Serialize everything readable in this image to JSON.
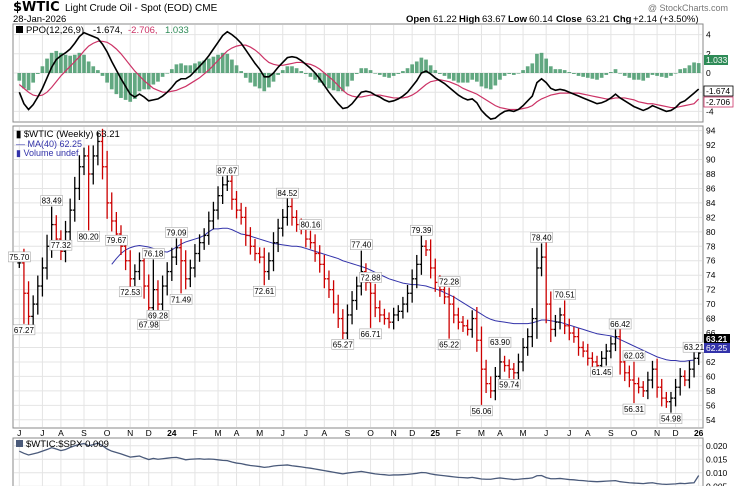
{
  "header": {
    "symbol": "$WTIC",
    "description": "Light Crude Oil - Spot (EOD) CME",
    "date": "28-Jan-2026",
    "watermark": "@ StockCharts.com",
    "quote": {
      "open_label": "Open",
      "open": "61.22",
      "high_label": "High",
      "high": "63.67",
      "low_label": "Low",
      "low": "60.14",
      "close_label": "Close",
      "close": "63.21",
      "chg_label": "Chg",
      "chg": "+2.14 (+3.50%)"
    }
  },
  "ppo_panel": {
    "legend_name": "PPO(12,26,9)",
    "legend_v1": "-1.674,",
    "legend_v2": "-2.706,",
    "legend_v3": "1.033",
    "tag_hist": "1.033",
    "tag_ppo": "-1.674",
    "tag_signal": "-2.706"
  },
  "price_panel": {
    "legend_title": "$WTIC (Weekly) 63.21",
    "legend_ma": "MA(40) 62.25",
    "legend_volume": "Volume undef",
    "tag_close": "63.21",
    "tag_ma": "62.25"
  },
  "ratio_panel": {
    "legend": "$WTIC:$SPX 0.009"
  },
  "colors": {
    "up": "#000000",
    "down": "#cc0000",
    "ma": "#3333aa",
    "ppo_line": "#000000",
    "signal_line": "#cc3366",
    "histogram": "#2e8b57",
    "ratio_line": "#4a5a7a",
    "grid": "#e4e4e4",
    "tag_price_bg": "#000000",
    "tag_ma_bg": "#3333aa",
    "tag_hist_bg": "#2e8b57"
  },
  "chart_data": {
    "type": "ohlc-bar",
    "timeframe": "weekly",
    "x_axis_labels": [
      "J",
      "J",
      "A",
      "S",
      "O",
      "N",
      "D",
      "24",
      "F",
      "M",
      "A",
      "M",
      "J",
      "J",
      "A",
      "S",
      "O",
      "N",
      "D",
      "25",
      "F",
      "M",
      "A",
      "M",
      "J",
      "J",
      "A",
      "S",
      "O",
      "N",
      "D",
      "26"
    ],
    "y_axis": {
      "ticks": [
        54,
        56,
        58,
        60,
        62,
        64,
        66,
        68,
        70,
        72,
        74,
        76,
        78,
        80,
        82,
        84,
        86,
        88,
        90,
        92,
        94
      ],
      "ylim": [
        53,
        94.5
      ]
    },
    "ppo_axis": {
      "ticks": [
        4,
        2,
        0,
        -2,
        -4
      ],
      "ylim": [
        -5,
        5
      ]
    },
    "ratio_axis": {
      "ticks": [
        0.02,
        0.015,
        0.01,
        0.005
      ],
      "ylim": [
        0.004,
        0.0225
      ]
    },
    "annotations": [
      {
        "week": 0,
        "value": 75.7,
        "text": "75.70"
      },
      {
        "week": 1,
        "value": 67.27,
        "text": "67.27"
      },
      {
        "week": 7,
        "value": 83.49,
        "text": "83.49"
      },
      {
        "week": 9,
        "value": 77.32,
        "text": "77.32"
      },
      {
        "week": 15,
        "value": 80.2,
        "text": "80.20"
      },
      {
        "week": 21,
        "value": 79.67,
        "text": "79.67"
      },
      {
        "week": 24,
        "value": 72.53,
        "text": "72.53"
      },
      {
        "week": 28,
        "value": 67.98,
        "text": "67.98"
      },
      {
        "week": 29,
        "value": 76.18,
        "text": "76.18"
      },
      {
        "week": 30,
        "value": 69.28,
        "text": "69.28"
      },
      {
        "week": 34,
        "value": 79.09,
        "text": "79.09"
      },
      {
        "week": 35,
        "value": 71.49,
        "text": "71.49"
      },
      {
        "week": 45,
        "value": 87.67,
        "text": "87.67"
      },
      {
        "week": 53,
        "value": 72.61,
        "text": "72.61"
      },
      {
        "week": 58,
        "value": 84.52,
        "text": "84.52"
      },
      {
        "week": 63,
        "value": 80.16,
        "text": "80.16"
      },
      {
        "week": 70,
        "value": 65.27,
        "text": "65.27"
      },
      {
        "week": 74,
        "value": 77.4,
        "text": "77.40"
      },
      {
        "week": 76,
        "value": 72.88,
        "text": "72.88"
      },
      {
        "week": 76,
        "value": 66.71,
        "text": "66.71"
      },
      {
        "week": 87,
        "value": 79.39,
        "text": "79.39"
      },
      {
        "week": 93,
        "value": 72.28,
        "text": "72.28"
      },
      {
        "week": 93,
        "value": 65.22,
        "text": "65.22"
      },
      {
        "week": 100,
        "value": 56.06,
        "text": "56.06"
      },
      {
        "week": 104,
        "value": 63.9,
        "text": "63.90"
      },
      {
        "week": 106,
        "value": 59.74,
        "text": "59.74"
      },
      {
        "week": 113,
        "value": 78.4,
        "text": "78.40"
      },
      {
        "week": 118,
        "value": 70.51,
        "text": "70.51"
      },
      {
        "week": 126,
        "value": 61.45,
        "text": "61.45"
      },
      {
        "week": 130,
        "value": 66.42,
        "text": "66.42"
      },
      {
        "week": 133,
        "value": 62.03,
        "text": "62.03"
      },
      {
        "week": 133,
        "value": 56.31,
        "text": "56.31"
      },
      {
        "week": 141,
        "value": 54.98,
        "text": "54.98"
      },
      {
        "week": 146,
        "value": 63.21,
        "text": "63.21"
      }
    ],
    "close_series": [
      75.7,
      71.5,
      68.3,
      70.0,
      72.5,
      75.0,
      78.0,
      81.0,
      79.0,
      77.3,
      80.0,
      83.0,
      86.0,
      89.0,
      90.5,
      88.0,
      90.5,
      92.5,
      89.0,
      84.0,
      81.5,
      79.7,
      78.0,
      76.0,
      73.5,
      74.5,
      76.0,
      72.5,
      69.5,
      72.0,
      70.0,
      72.5,
      74.5,
      76.5,
      77.8,
      76.0,
      73.5,
      75.0,
      77.0,
      78.5,
      79.5,
      81.5,
      83.0,
      85.0,
      86.5,
      87.0,
      84.5,
      83.0,
      82.0,
      79.5,
      78.0,
      77.0,
      76.5,
      74.5,
      76.0,
      78.5,
      80.5,
      82.0,
      83.5,
      82.0,
      81.0,
      80.5,
      79.0,
      78.5,
      77.0,
      75.5,
      73.5,
      72.0,
      70.0,
      68.0,
      66.0,
      68.5,
      70.5,
      72.5,
      74.5,
      73.0,
      71.5,
      69.5,
      68.5,
      68.0,
      67.5,
      68.5,
      69.0,
      70.0,
      71.5,
      73.5,
      75.5,
      78.0,
      77.5,
      75.0,
      73.0,
      72.0,
      71.0,
      70.0,
      68.5,
      67.5,
      67.0,
      66.5,
      68.0,
      65.0,
      61.0,
      59.0,
      58.0,
      60.0,
      62.0,
      61.5,
      61.0,
      60.5,
      62.0,
      64.0,
      65.5,
      68.0,
      75.0,
      76.5,
      70.0,
      66.5,
      67.5,
      68.5,
      67.0,
      66.0,
      65.5,
      64.0,
      63.5,
      62.5,
      62.0,
      61.5,
      62.5,
      63.5,
      64.5,
      65.5,
      62.0,
      60.5,
      59.5,
      59.0,
      58.5,
      58.0,
      59.5,
      61.0,
      58.5,
      57.0,
      56.5,
      57.0,
      58.5,
      60.0,
      59.5,
      61.0,
      62.5,
      63.21
    ],
    "ma40_series": [
      null,
      null,
      null,
      null,
      null,
      null,
      null,
      null,
      null,
      null,
      null,
      null,
      null,
      null,
      null,
      null,
      null,
      null,
      null,
      null,
      75.5,
      76.3,
      77.0,
      77.5,
      77.8,
      78.0,
      78.1,
      78.0,
      77.9,
      77.7,
      77.5,
      77.3,
      77.2,
      77.5,
      77.9,
      78.3,
      78.6,
      78.8,
      79.0,
      79.2,
      79.5,
      80.0,
      80.4,
      80.4,
      80.5,
      80.5,
      80.3,
      80.0,
      79.7,
      79.6,
      79.4,
      79.2,
      79.0,
      78.8,
      78.6,
      78.4,
      78.3,
      78.2,
      78.1,
      78.0,
      78.0,
      77.9,
      77.7,
      77.5,
      77.3,
      77.1,
      76.9,
      76.7,
      76.5,
      76.3,
      76.0,
      75.8,
      75.6,
      75.4,
      75.2,
      75.0,
      74.7,
      74.4,
      74.1,
      73.8,
      73.5,
      73.3,
      73.1,
      72.9,
      72.8,
      72.7,
      72.7,
      72.6,
      72.5,
      72.3,
      72.1,
      71.9,
      71.6,
      71.3,
      71.0,
      70.6,
      70.2,
      69.8,
      69.4,
      69.0,
      68.6,
      68.2,
      67.9,
      67.7,
      67.6,
      67.5,
      67.4,
      67.3,
      67.3,
      67.3,
      67.3,
      67.4,
      67.6,
      67.8,
      67.8,
      67.7,
      67.6,
      67.5,
      67.3,
      67.1,
      66.9,
      66.7,
      66.5,
      66.3,
      66.1,
      65.9,
      65.8,
      65.7,
      65.6,
      65.4,
      65.1,
      64.8,
      64.5,
      64.2,
      63.9,
      63.6,
      63.3,
      63.0,
      62.7,
      62.5,
      62.3,
      62.2,
      62.2,
      62.1,
      62.1,
      62.2,
      62.25
    ],
    "ppo_series": [
      -2.0,
      -3.2,
      -3.8,
      -3.3,
      -2.5,
      -1.6,
      -0.5,
      0.6,
      1.4,
      1.8,
      2.1,
      2.5,
      3.1,
      3.8,
      4.2,
      4.0,
      3.8,
      3.6,
      3.0,
      2.2,
      1.2,
      0.3,
      -0.6,
      -1.4,
      -2.2,
      -2.5,
      -2.2,
      -2.5,
      -2.9,
      -2.8,
      -2.7,
      -2.4,
      -2.0,
      -1.5,
      -0.9,
      -0.6,
      -0.6,
      -0.3,
      0.2,
      0.7,
      1.2,
      1.8,
      2.5,
      3.2,
      3.9,
      4.3,
      4.0,
      3.6,
      3.1,
      2.4,
      1.7,
      1.0,
      0.4,
      -0.4,
      -0.4,
      0.0,
      0.6,
      1.1,
      1.6,
      1.7,
      1.6,
      1.3,
      0.9,
      0.5,
      0.0,
      -0.6,
      -1.3,
      -2.0,
      -2.6,
      -3.2,
      -3.7,
      -3.6,
      -3.2,
      -2.6,
      -2.0,
      -1.9,
      -2.0,
      -2.3,
      -2.5,
      -2.8,
      -3.0,
      -2.9,
      -2.7,
      -2.4,
      -2.0,
      -1.4,
      -0.8,
      0.0,
      0.2,
      -0.1,
      -0.5,
      -0.8,
      -1.1,
      -1.5,
      -1.9,
      -2.3,
      -2.6,
      -2.8,
      -2.7,
      -3.1,
      -3.9,
      -4.4,
      -4.8,
      -4.7,
      -4.3,
      -4.0,
      -3.9,
      -4.0,
      -3.8,
      -3.4,
      -2.9,
      -2.4,
      -1.0,
      -0.6,
      -1.0,
      -1.6,
      -1.8,
      -1.7,
      -1.8,
      -2.0,
      -2.2,
      -2.4,
      -2.6,
      -2.8,
      -3.0,
      -3.2,
      -3.1,
      -2.9,
      -2.6,
      -2.2,
      -2.6,
      -2.9,
      -3.2,
      -3.5,
      -3.7,
      -3.9,
      -3.7,
      -3.4,
      -3.6,
      -3.8,
      -4.0,
      -3.9,
      -3.6,
      -3.1,
      -2.9,
      -2.5,
      -2.1,
      -1.674
    ],
    "signal_series": [
      -1.2,
      -1.6,
      -2.0,
      -2.3,
      -2.4,
      -2.3,
      -2.0,
      -1.5,
      -0.9,
      -0.3,
      0.2,
      0.7,
      1.2,
      1.7,
      2.3,
      2.8,
      3.1,
      3.3,
      3.3,
      3.2,
      2.9,
      2.5,
      2.0,
      1.4,
      0.8,
      0.2,
      -0.3,
      -0.8,
      -1.2,
      -1.6,
      -1.8,
      -2.0,
      -2.0,
      -1.9,
      -1.8,
      -1.6,
      -1.4,
      -1.1,
      -0.8,
      -0.5,
      -0.1,
      0.3,
      0.8,
      1.3,
      1.8,
      2.3,
      2.6,
      2.8,
      2.9,
      2.9,
      2.7,
      2.4,
      2.0,
      1.5,
      1.1,
      0.9,
      0.8,
      0.8,
      0.9,
      1.0,
      1.1,
      1.1,
      1.0,
      0.9,
      0.7,
      0.4,
      0.0,
      -0.4,
      -0.8,
      -1.3,
      -1.8,
      -2.2,
      -2.4,
      -2.5,
      -2.5,
      -2.4,
      -2.3,
      -2.3,
      -2.3,
      -2.4,
      -2.5,
      -2.6,
      -2.6,
      -2.6,
      -2.5,
      -2.3,
      -2.0,
      -1.6,
      -1.2,
      -0.9,
      -0.8,
      -0.7,
      -0.8,
      -0.9,
      -1.1,
      -1.3,
      -1.6,
      -1.8,
      -2.0,
      -2.2,
      -2.5,
      -2.8,
      -3.1,
      -3.4,
      -3.6,
      -3.7,
      -3.8,
      -3.8,
      -3.8,
      -3.7,
      -3.6,
      -3.4,
      -3.0,
      -2.7,
      -2.5,
      -2.3,
      -2.2,
      -2.1,
      -2.1,
      -2.1,
      -2.1,
      -2.1,
      -2.2,
      -2.3,
      -2.4,
      -2.5,
      -2.6,
      -2.7,
      -2.7,
      -2.6,
      -2.6,
      -2.6,
      -2.7,
      -2.8,
      -3.0,
      -3.1,
      -3.2,
      -3.2,
      -3.3,
      -3.4,
      -3.5,
      -3.6,
      -3.6,
      -3.5,
      -3.4,
      -3.3,
      -3.2,
      -2.706
    ],
    "ratio_series": [
      0.018,
      0.0172,
      0.0166,
      0.017,
      0.0174,
      0.018,
      0.0186,
      0.0193,
      0.0188,
      0.0182,
      0.0186,
      0.0194,
      0.02,
      0.0205,
      0.0208,
      0.02,
      0.0204,
      0.021,
      0.02,
      0.0188,
      0.018,
      0.0175,
      0.017,
      0.0164,
      0.0158,
      0.016,
      0.0162,
      0.0155,
      0.0149,
      0.0153,
      0.015,
      0.0152,
      0.0154,
      0.0156,
      0.0157,
      0.0153,
      0.0148,
      0.015,
      0.0151,
      0.0152,
      0.015,
      0.0151,
      0.015,
      0.0148,
      0.0146,
      0.0145,
      0.014,
      0.0136,
      0.0134,
      0.013,
      0.0127,
      0.0125,
      0.0123,
      0.012,
      0.0122,
      0.0125,
      0.0127,
      0.0128,
      0.0129,
      0.0126,
      0.0124,
      0.0122,
      0.0119,
      0.0117,
      0.0114,
      0.0111,
      0.0108,
      0.0105,
      0.0102,
      0.0099,
      0.0096,
      0.0099,
      0.0101,
      0.0103,
      0.0105,
      0.0102,
      0.0099,
      0.0096,
      0.0094,
      0.0093,
      0.0091,
      0.0092,
      0.0092,
      0.0093,
      0.0094,
      0.0096,
      0.0098,
      0.0101,
      0.01,
      0.0096,
      0.0093,
      0.0091,
      0.0089,
      0.0087,
      0.0085,
      0.0083,
      0.0082,
      0.0081,
      0.0083,
      0.008,
      0.0077,
      0.0076,
      0.0076,
      0.0079,
      0.0081,
      0.0079,
      0.0077,
      0.0075,
      0.0076,
      0.0078,
      0.0079,
      0.0081,
      0.0089,
      0.009,
      0.0082,
      0.0078,
      0.0078,
      0.0079,
      0.0077,
      0.0075,
      0.0074,
      0.0072,
      0.0071,
      0.0069,
      0.0068,
      0.0067,
      0.0068,
      0.0069,
      0.007,
      0.0071,
      0.0067,
      0.0065,
      0.0063,
      0.0062,
      0.0061,
      0.006,
      0.0062,
      0.0063,
      0.006,
      0.0058,
      0.0057,
      0.0058,
      0.0059,
      0.0061,
      0.006,
      0.0062,
      0.0063,
      0.009
    ]
  }
}
